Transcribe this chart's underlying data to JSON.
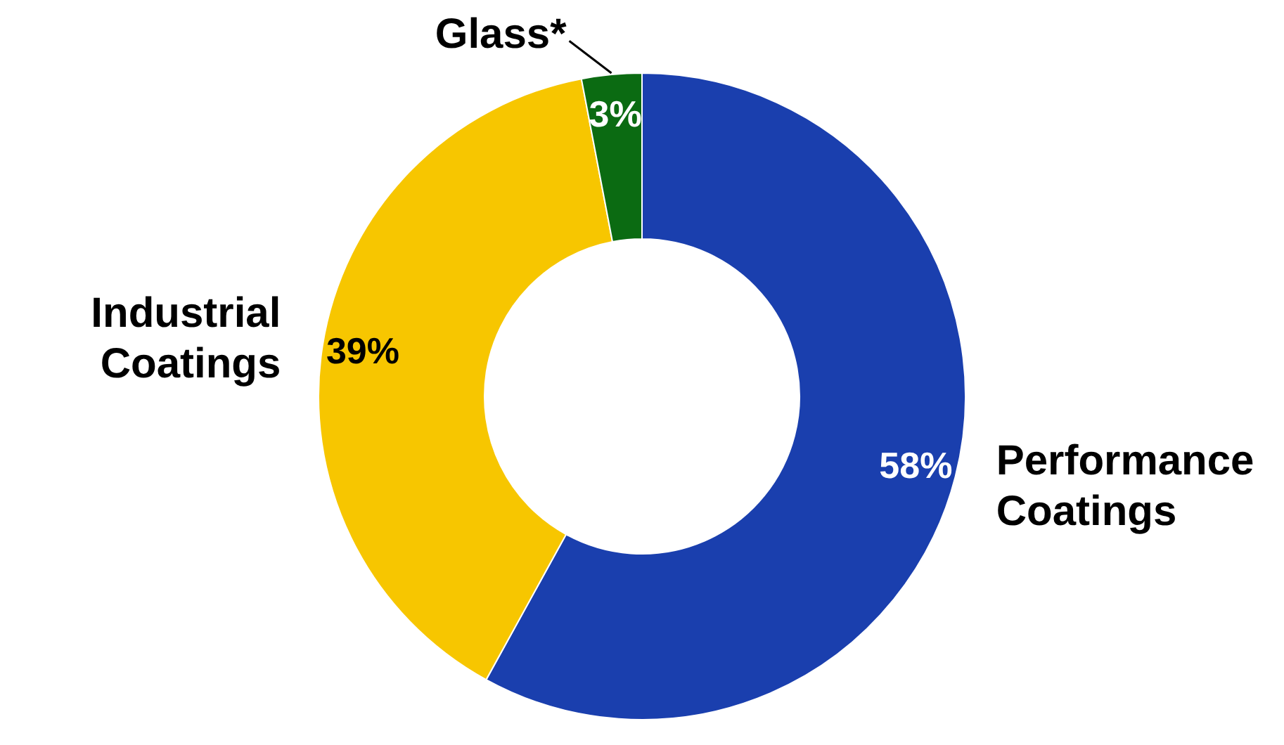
{
  "chart_data": {
    "type": "donut",
    "categories": [
      "Performance Coatings",
      "Industrial Coatings",
      "Glass*"
    ],
    "values": [
      58,
      39,
      3
    ],
    "colors": [
      "#1a3fae",
      "#f7c600",
      "#0b6b12"
    ],
    "value_labels": [
      "58%",
      "39%",
      "3%"
    ],
    "legend": false
  }
}
